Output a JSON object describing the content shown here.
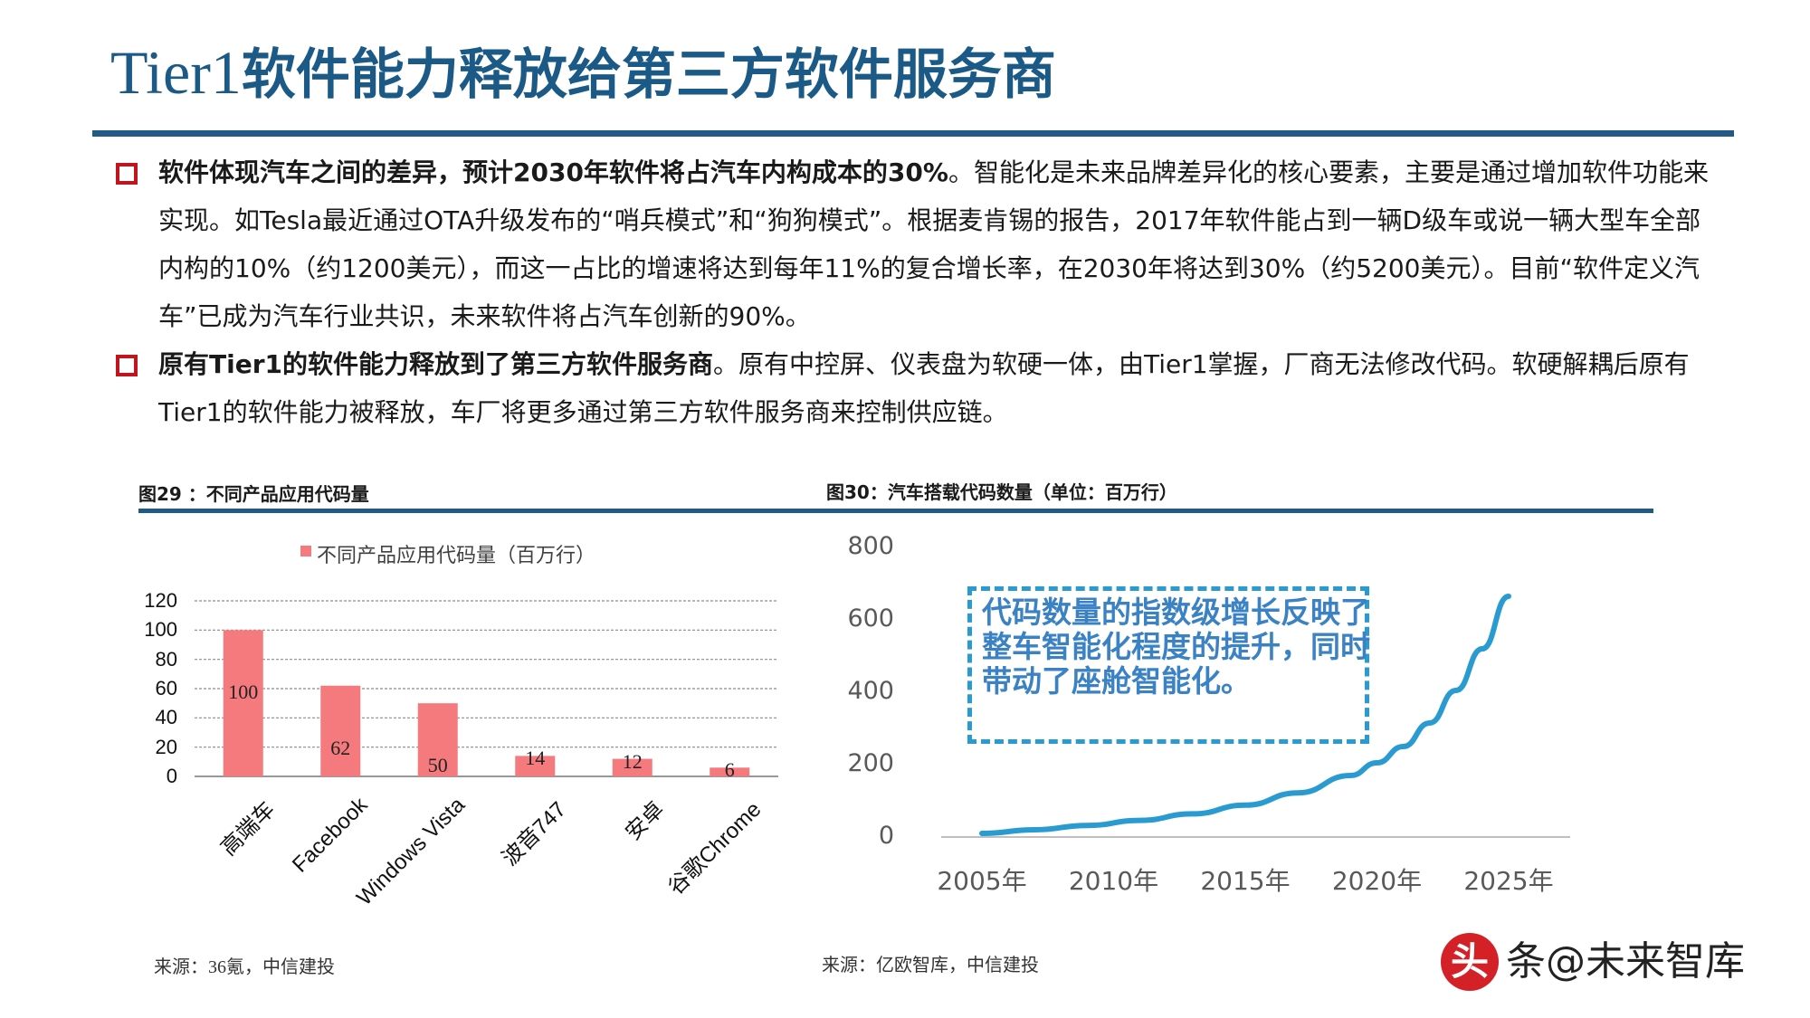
{
  "title": {
    "latin": "Tier1",
    "cjk": "软件能力释放给第三方软件服务商"
  },
  "bullets": [
    {
      "bold": "软件体现汽车之间的差异，预计2030年软件将占汽车内构成本的30%",
      "text": "。智能化是未来品牌差异化的核心要素，主要是通过增加软件功能来实现。如Tesla最近通过OTA升级发布的“哨兵模式”和“狗狗模式”。根据麦肯锡的报告，2017年软件能占到一辆D级车或说一辆大型车全部内构的10%（约1200美元），而这一占比的增速将达到每年11%的复合增长率，在2030年将达到30%（约5200美元）。目前“软件定义汽车”已成为汽车行业共识，未来软件将占汽车创新的90%。"
    },
    {
      "bold": "原有Tier1的软件能力释放到了第三方软件服务商",
      "text": "。原有中控屏、仪表盘为软硬一体，由Tier1掌握，厂商无法修改代码。软硬解耦后原有Tier1的软件能力被释放，车厂将更多通过第三方软件服务商来控制供应链。"
    }
  ],
  "figures": [
    {
      "caption": "图29 ：不同产品应用代码量",
      "source": "来源：36氪，中信建投"
    },
    {
      "caption": "图30：汽车搭载代码数量（单位：百万行）",
      "source": "来源：亿欧智库，中信建投"
    }
  ],
  "callout": "代码数量的指数级增长反映了整车智能化程度的提升，同时带动了座舱智能化。",
  "watermark": {
    "badge": "头",
    "text": "条@未来智库"
  },
  "colors": {
    "title": "#1b5a86",
    "rule": "#1f5b86",
    "bullet": "#c0141e",
    "bar": "#f47a7e",
    "line": "#2a9bd0"
  },
  "chart_data": [
    {
      "type": "bar",
      "legend": "不同产品应用代码量（百万行）",
      "categories": [
        "高端车",
        "Facebook",
        "Windows Vista",
        "波音747",
        "安卓",
        "谷歌Chrome"
      ],
      "values": [
        100,
        62,
        50,
        14,
        12,
        6
      ],
      "yticks": [
        0,
        20,
        40,
        60,
        80,
        100,
        120
      ],
      "ylim": [
        0,
        120
      ],
      "grid": true
    },
    {
      "type": "line",
      "x_ticks": [
        "2005年",
        "2010年",
        "2015年",
        "2020年",
        "2025年"
      ],
      "yticks": [
        0,
        200,
        400,
        600,
        800
      ],
      "ylim": [
        0,
        800
      ],
      "x": [
        2005,
        2007,
        2009,
        2011,
        2013,
        2015,
        2017,
        2019,
        2020,
        2021,
        2022,
        2023,
        2024,
        2025
      ],
      "y": [
        10,
        20,
        32,
        46,
        64,
        88,
        122,
        170,
        205,
        250,
        315,
        405,
        520,
        665
      ],
      "grid": false
    }
  ]
}
